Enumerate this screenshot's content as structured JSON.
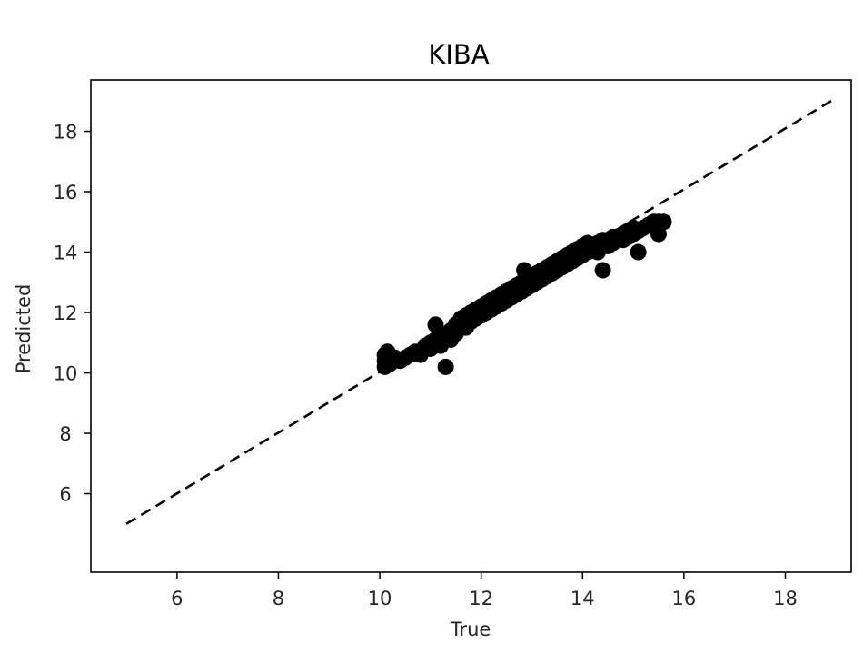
{
  "chart_data": {
    "type": "scatter",
    "title": "KIBA",
    "xlabel": "True",
    "ylabel": "Predicted",
    "xlim": [
      4.3,
      19.3
    ],
    "ylim": [
      3.4,
      19.7
    ],
    "xticks": [
      6,
      8,
      10,
      12,
      14,
      16,
      18
    ],
    "yticks": [
      6,
      8,
      10,
      12,
      14,
      16,
      18
    ],
    "grid": false,
    "reference_line": {
      "style": "dashed",
      "color": "#000000",
      "from": [
        5,
        5
      ],
      "to": [
        19,
        19.1
      ]
    },
    "series": [
      {
        "color": "#000000",
        "points": [
          [
            10.1,
            10.2
          ],
          [
            10.1,
            10.4
          ],
          [
            10.1,
            10.6
          ],
          [
            10.15,
            10.7
          ],
          [
            10.2,
            10.3
          ],
          [
            10.3,
            10.5
          ],
          [
            10.4,
            10.4
          ],
          [
            10.5,
            10.5
          ],
          [
            10.6,
            10.6
          ],
          [
            10.7,
            10.7
          ],
          [
            10.8,
            10.6
          ],
          [
            10.9,
            10.9
          ],
          [
            11.0,
            10.8
          ],
          [
            11.0,
            11.0
          ],
          [
            11.1,
            11.1
          ],
          [
            11.1,
            11.6
          ],
          [
            11.2,
            11.2
          ],
          [
            11.2,
            10.9
          ],
          [
            11.3,
            11.3
          ],
          [
            11.3,
            10.2
          ],
          [
            11.4,
            11.4
          ],
          [
            11.4,
            11.1
          ],
          [
            11.5,
            11.6
          ],
          [
            11.5,
            11.3
          ],
          [
            11.6,
            11.5
          ],
          [
            11.6,
            11.8
          ],
          [
            11.7,
            11.5
          ],
          [
            11.7,
            11.9
          ],
          [
            11.8,
            11.7
          ],
          [
            11.8,
            12.0
          ],
          [
            11.9,
            11.8
          ],
          [
            11.9,
            12.1
          ],
          [
            12.0,
            11.9
          ],
          [
            12.0,
            12.2
          ],
          [
            12.1,
            12.0
          ],
          [
            12.1,
            12.3
          ],
          [
            12.2,
            12.1
          ],
          [
            12.2,
            12.4
          ],
          [
            12.3,
            12.2
          ],
          [
            12.3,
            12.5
          ],
          [
            12.4,
            12.3
          ],
          [
            12.4,
            12.6
          ],
          [
            12.5,
            12.4
          ],
          [
            12.5,
            12.7
          ],
          [
            12.6,
            12.5
          ],
          [
            12.6,
            12.8
          ],
          [
            12.7,
            12.6
          ],
          [
            12.7,
            12.9
          ],
          [
            12.8,
            12.7
          ],
          [
            12.8,
            13.0
          ],
          [
            12.85,
            13.4
          ],
          [
            12.9,
            12.8
          ],
          [
            12.9,
            13.1
          ],
          [
            13.0,
            12.9
          ],
          [
            13.0,
            13.2
          ],
          [
            13.1,
            13.0
          ],
          [
            13.1,
            13.3
          ],
          [
            13.2,
            13.1
          ],
          [
            13.2,
            13.4
          ],
          [
            13.3,
            13.2
          ],
          [
            13.3,
            13.5
          ],
          [
            13.4,
            13.3
          ],
          [
            13.4,
            13.6
          ],
          [
            13.5,
            13.4
          ],
          [
            13.5,
            13.7
          ],
          [
            13.6,
            13.5
          ],
          [
            13.6,
            13.8
          ],
          [
            13.7,
            13.6
          ],
          [
            13.7,
            13.9
          ],
          [
            13.8,
            13.7
          ],
          [
            13.8,
            14.0
          ],
          [
            13.9,
            13.8
          ],
          [
            13.9,
            14.1
          ],
          [
            14.0,
            13.9
          ],
          [
            14.0,
            14.2
          ],
          [
            14.1,
            14.0
          ],
          [
            14.1,
            14.3
          ],
          [
            14.2,
            14.1
          ],
          [
            14.2,
            14.2
          ],
          [
            14.3,
            14.0
          ],
          [
            14.3,
            14.3
          ],
          [
            14.4,
            13.4
          ],
          [
            14.4,
            14.4
          ],
          [
            14.5,
            14.2
          ],
          [
            14.5,
            14.4
          ],
          [
            14.6,
            14.3
          ],
          [
            14.6,
            14.5
          ],
          [
            14.7,
            14.5
          ],
          [
            14.8,
            14.4
          ],
          [
            14.8,
            14.6
          ],
          [
            14.9,
            14.5
          ],
          [
            14.9,
            14.7
          ],
          [
            15.0,
            14.6
          ],
          [
            15.0,
            14.8
          ],
          [
            15.1,
            14.0
          ],
          [
            15.1,
            14.7
          ],
          [
            15.2,
            14.8
          ],
          [
            15.3,
            14.9
          ],
          [
            15.4,
            15.0
          ],
          [
            15.5,
            14.6
          ],
          [
            15.5,
            15.0
          ],
          [
            15.6,
            15.0
          ]
        ]
      }
    ]
  }
}
